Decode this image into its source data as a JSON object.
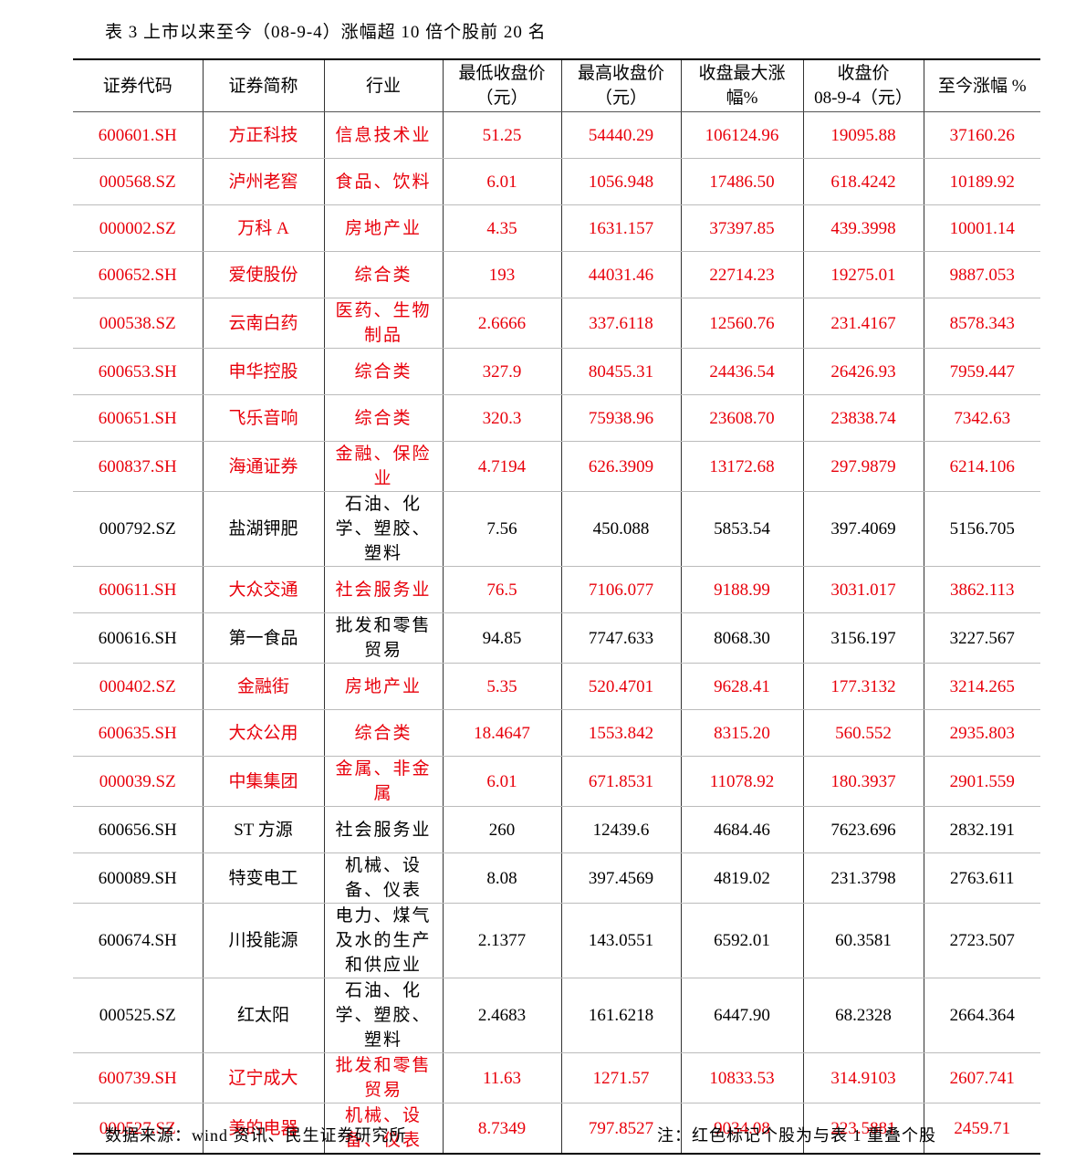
{
  "title": "表 3 上市以来至今（08-9-4）涨幅超 10 倍个股前 20 名",
  "table": {
    "header": [
      [
        "证券代码"
      ],
      [
        "证券简称"
      ],
      [
        "行业"
      ],
      [
        "最低收盘价",
        "（元）"
      ],
      [
        "最高收盘价",
        "（元）"
      ],
      [
        "收盘最大涨",
        "幅%"
      ],
      [
        "收盘价",
        "08-9-4（元）"
      ],
      [
        "至今涨幅 %"
      ]
    ],
    "rows": [
      {
        "color": "#e8000b",
        "cells": [
          "600601.SH",
          "方正科技",
          "信息技术业",
          "51.25",
          "54440.29",
          "106124.96",
          "19095.88",
          "37160.26"
        ]
      },
      {
        "color": "#e8000b",
        "cells": [
          "000568.SZ",
          "泸州老窖",
          "食品、饮料",
          "6.01",
          "1056.948",
          "17486.50",
          "618.4242",
          "10189.92"
        ]
      },
      {
        "color": "#e8000b",
        "cells": [
          "000002.SZ",
          "万科 A",
          "房地产业",
          "4.35",
          "1631.157",
          "37397.85",
          "439.3998",
          "10001.14"
        ]
      },
      {
        "color": "#e8000b",
        "cells": [
          "600652.SH",
          "爱使股份",
          "综合类",
          "193",
          "44031.46",
          "22714.23",
          "19275.01",
          "9887.053"
        ]
      },
      {
        "color": "#e8000b",
        "cells": [
          "000538.SZ",
          "云南白药",
          "医药、生物制品",
          "2.6666",
          "337.6118",
          "12560.76",
          "231.4167",
          "8578.343"
        ]
      },
      {
        "color": "#e8000b",
        "cells": [
          "600653.SH",
          "申华控股",
          "综合类",
          "327.9",
          "80455.31",
          "24436.54",
          "26426.93",
          "7959.447"
        ]
      },
      {
        "color": "#e8000b",
        "cells": [
          "600651.SH",
          "飞乐音响",
          "综合类",
          "320.3",
          "75938.96",
          "23608.70",
          "23838.74",
          "7342.63"
        ]
      },
      {
        "color": "#e8000b",
        "cells": [
          "600837.SH",
          "海通证券",
          "金融、保险业",
          "4.7194",
          "626.3909",
          "13172.68",
          "297.9879",
          "6214.106"
        ]
      },
      {
        "color": "#000000",
        "cells": [
          "000792.SZ",
          "盐湖钾肥",
          "石油、化学、塑胶、塑料",
          "7.56",
          "450.088",
          "5853.54",
          "397.4069",
          "5156.705"
        ]
      },
      {
        "color": "#e8000b",
        "cells": [
          "600611.SH",
          "大众交通",
          "社会服务业",
          "76.5",
          "7106.077",
          "9188.99",
          "3031.017",
          "3862.113"
        ]
      },
      {
        "color": "#000000",
        "cells": [
          "600616.SH",
          "第一食品",
          "批发和零售贸易",
          "94.85",
          "7747.633",
          "8068.30",
          "3156.197",
          "3227.567"
        ]
      },
      {
        "color": "#e8000b",
        "cells": [
          "000402.SZ",
          "金融街",
          "房地产业",
          "5.35",
          "520.4701",
          "9628.41",
          "177.3132",
          "3214.265"
        ]
      },
      {
        "color": "#e8000b",
        "cells": [
          "600635.SH",
          "大众公用",
          "综合类",
          "18.4647",
          "1553.842",
          "8315.20",
          "560.552",
          "2935.803"
        ]
      },
      {
        "color": "#e8000b",
        "cells": [
          "000039.SZ",
          "中集集团",
          "金属、非金属",
          "6.01",
          "671.8531",
          "11078.92",
          "180.3937",
          "2901.559"
        ]
      },
      {
        "color": "#000000",
        "cells": [
          "600656.SH",
          "ST 方源",
          "社会服务业",
          "260",
          "12439.6",
          "4684.46",
          "7623.696",
          "2832.191"
        ]
      },
      {
        "color": "#000000",
        "cells": [
          "600089.SH",
          "特变电工",
          "机械、设备、仪表",
          "8.08",
          "397.4569",
          "4819.02",
          "231.3798",
          "2763.611"
        ]
      },
      {
        "color": "#000000",
        "cells": [
          "600674.SH",
          "川投能源",
          "电力、煤气及水的生产和供应业",
          "2.1377",
          "143.0551",
          "6592.01",
          "60.3581",
          "2723.507"
        ]
      },
      {
        "color": "#000000",
        "cells": [
          "000525.SZ",
          "红太阳",
          "石油、化学、塑胶、塑料",
          "2.4683",
          "161.6218",
          "6447.90",
          "68.2328",
          "2664.364"
        ]
      },
      {
        "color": "#e8000b",
        "cells": [
          "600739.SH",
          "辽宁成大",
          "批发和零售贸易",
          "11.63",
          "1271.57",
          "10833.53",
          "314.9103",
          "2607.741"
        ]
      },
      {
        "color": "#e8000b",
        "cells": [
          "000527.SZ",
          "美的电器",
          "机械、设备、仪表",
          "8.7349",
          "797.8527",
          "9034.08",
          "223.5881",
          "2459.71"
        ]
      }
    ]
  },
  "footer": {
    "source": "数据来源：wind 资讯、民生证券研究所",
    "note": "注：红色标记个股为与表 1 重叠个股"
  }
}
